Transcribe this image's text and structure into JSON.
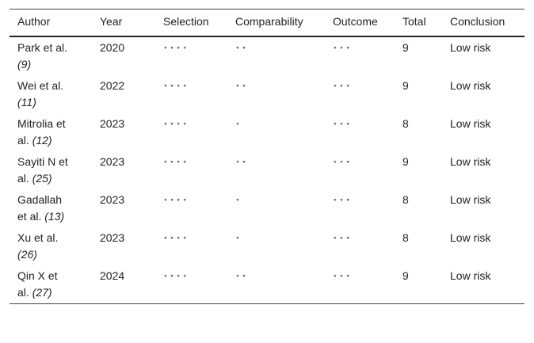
{
  "table": {
    "header": [
      "Author",
      "Year",
      "Selection",
      "Comparability",
      "Outcome",
      "Total",
      "Conclusion"
    ],
    "rows": [
      [
        {
          "name": "Park et al.",
          "ref": "(9)"
        },
        "2020",
        "⋆ ⋆ ⋆ ⋆",
        "⋆ ⋆",
        "⋆ ⋆ ⋆",
        "9",
        "Low risk"
      ],
      [
        {
          "name": "Wei et al.",
          "ref": "(11)"
        },
        "2022",
        "⋆ ⋆ ⋆ ⋆",
        "⋆ ⋆",
        "⋆ ⋆ ⋆",
        "9",
        "Low risk"
      ],
      [
        {
          "name": "Mitrolia et al.",
          "ref": "(12)"
        },
        "2023",
        "⋆ ⋆ ⋆ ⋆",
        "⋆",
        "⋆ ⋆ ⋆",
        "8",
        "Low risk"
      ],
      [
        {
          "name": "Sayiti N et al.",
          "ref": "(25)"
        },
        "2023",
        "⋆ ⋆ ⋆ ⋆",
        "⋆ ⋆",
        "⋆ ⋆ ⋆",
        "9",
        "Low risk"
      ],
      [
        {
          "name": "Gadallah et al.",
          "ref": "(13)"
        },
        "2023",
        "⋆ ⋆ ⋆ ⋆",
        "⋆",
        "⋆ ⋆ ⋆",
        "8",
        "Low risk"
      ],
      [
        {
          "name": "Xu et al.",
          "ref": "(26)"
        },
        "2023",
        "⋆ ⋆ ⋆ ⋆",
        "⋆",
        "⋆ ⋆ ⋆",
        "8",
        "Low risk"
      ],
      [
        {
          "name": "Qin X et al.",
          "ref": "(27)"
        },
        "2024",
        "⋆ ⋆ ⋆ ⋆",
        "⋆ ⋆",
        "⋆ ⋆ ⋆",
        "9",
        "Low risk"
      ]
    ]
  }
}
